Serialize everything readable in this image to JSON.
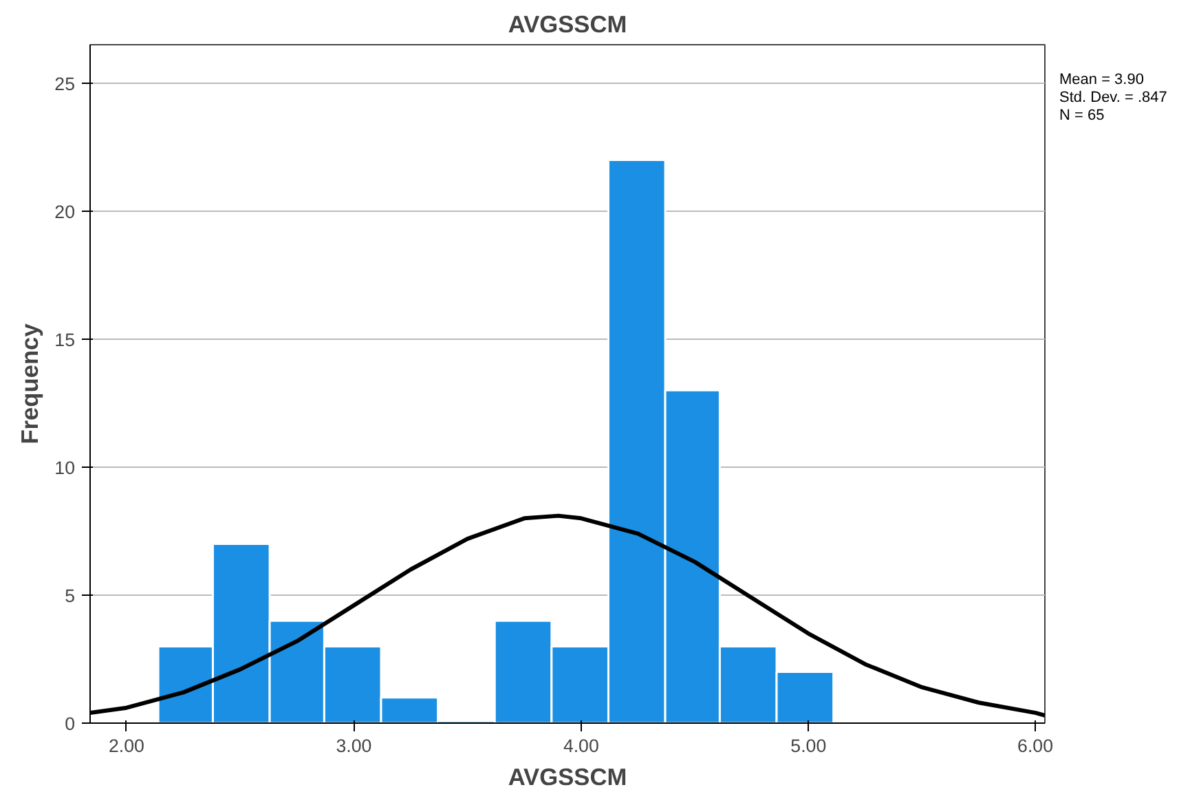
{
  "chart_data": {
    "type": "histogram",
    "title": "AVGSSCM",
    "xlabel": "AVGSSCM",
    "ylabel": "Frequency",
    "bins": [
      2.14,
      2.38,
      2.63,
      2.87,
      3.12,
      3.37,
      3.62,
      3.87,
      4.12,
      4.37,
      4.61,
      4.86,
      5.11
    ],
    "values": [
      3,
      7,
      4,
      3,
      1,
      0,
      4,
      3,
      22,
      13,
      3,
      2
    ],
    "color": "#1a8fe3",
    "series": [
      {
        "type": "line",
        "color": "#000000",
        "x": [
          1.84,
          2.0,
          2.25,
          2.5,
          2.75,
          3.0,
          3.25,
          3.5,
          3.75,
          3.9,
          4.0,
          4.25,
          4.5,
          4.75,
          5.0,
          5.25,
          5.5,
          5.75,
          6.0,
          6.04
        ],
        "values": [
          0.4,
          0.6,
          1.2,
          2.1,
          3.2,
          4.6,
          6.0,
          7.2,
          8.0,
          8.1,
          8.0,
          7.4,
          6.3,
          4.9,
          3.5,
          2.3,
          1.4,
          0.8,
          0.4,
          0.3
        ]
      }
    ],
    "xlim": [
      1.84,
      6.04
    ],
    "ylim": [
      0,
      26.5
    ],
    "xticks": [
      {
        "value": 2,
        "label": "2.00"
      },
      {
        "value": 3,
        "label": "3.00"
      },
      {
        "value": 4,
        "label": "4.00"
      },
      {
        "value": 5,
        "label": "5.00"
      },
      {
        "value": 6,
        "label": "6.00"
      }
    ],
    "yticks": [
      0,
      5,
      10,
      15,
      20,
      25
    ],
    "grid": "y",
    "line_style": "solid",
    "annotations": [
      "Mean = 3.90",
      "Std. Dev. = .847",
      "N = 65"
    ]
  }
}
